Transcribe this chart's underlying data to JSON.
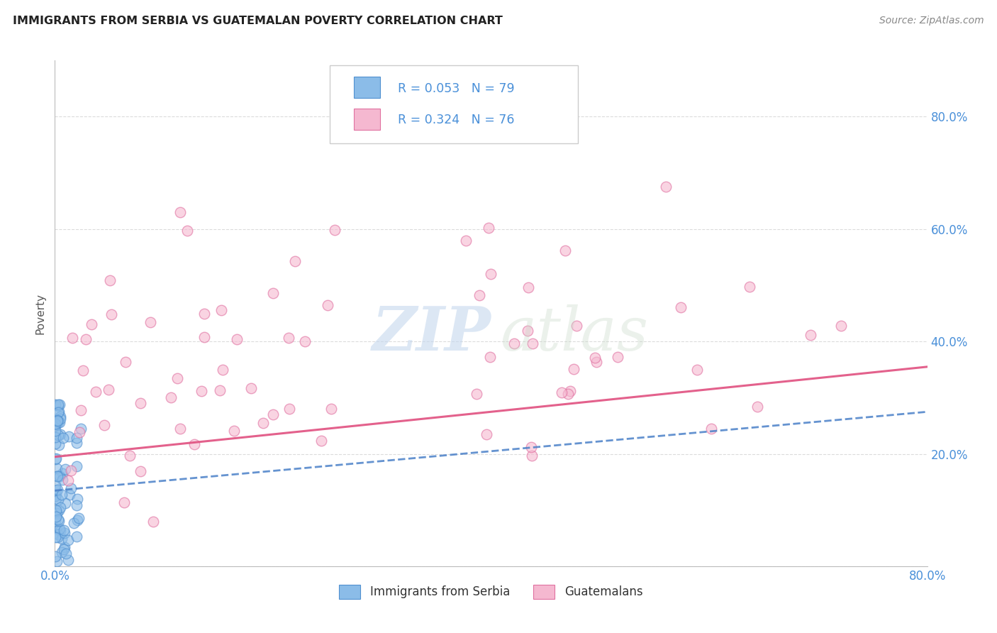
{
  "title": "IMMIGRANTS FROM SERBIA VS GUATEMALAN POVERTY CORRELATION CHART",
  "source": "Source: ZipAtlas.com",
  "ylabel": "Poverty",
  "xlim": [
    0.0,
    0.8
  ],
  "ylim": [
    0.0,
    0.9
  ],
  "yticks": [
    0.0,
    0.2,
    0.4,
    0.6,
    0.8
  ],
  "xticks": [
    0.0,
    0.2,
    0.4,
    0.6,
    0.8
  ],
  "ytick_right_labels": [
    "",
    "20.0%",
    "40.0%",
    "60.0%",
    "80.0%"
  ],
  "xtick_labels": [
    "0.0%",
    "",
    "",
    "",
    "80.0%"
  ],
  "legend_label1": "Immigrants from Serbia",
  "legend_label2": "Guatemalans",
  "serbia_face_color": "#8bbce8",
  "serbia_edge_color": "#5090d0",
  "guatemalan_face_color": "#f5b8d0",
  "guatemalan_edge_color": "#e070a0",
  "serbia_line_color": "#4a80c8",
  "guatemalan_line_color": "#e05080",
  "tick_label_color": "#4a90d9",
  "grid_color": "#d8d8d8",
  "background_color": "#ffffff",
  "serbia_R": 0.053,
  "serbia_N": 79,
  "guatemalan_R": 0.324,
  "guatemalan_N": 76,
  "serbia_line_x0": 0.0,
  "serbia_line_y0": 0.135,
  "serbia_line_x1": 0.8,
  "serbia_line_y1": 0.275,
  "guatemalan_line_x0": 0.0,
  "guatemalan_line_y0": 0.195,
  "guatemalan_line_x1": 0.8,
  "guatemalan_line_y1": 0.355
}
